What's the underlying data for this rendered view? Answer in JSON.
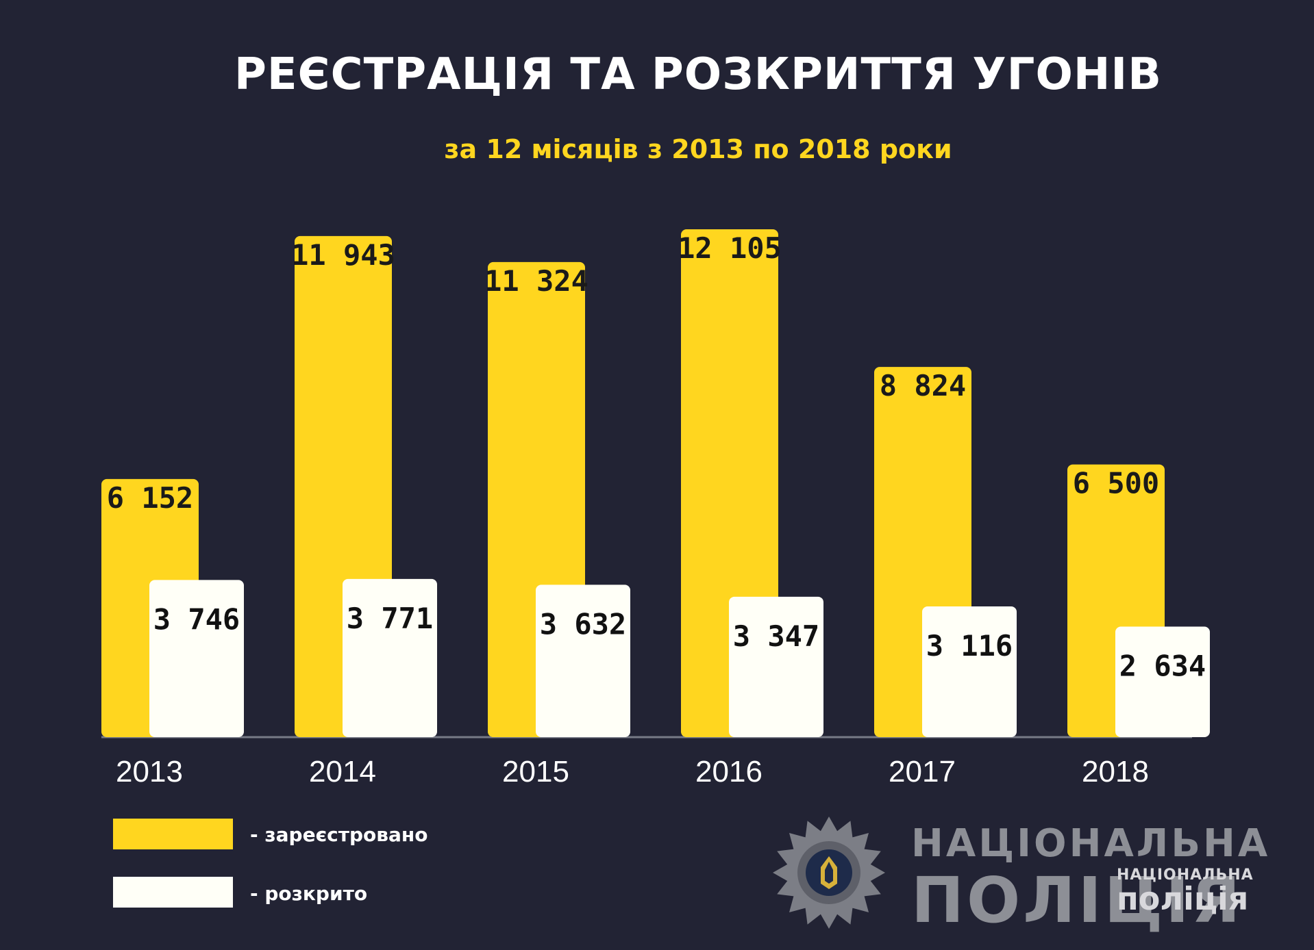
{
  "title": "РЕЄСТРАЦІЯ ТА РОЗКРИТТЯ УГОНІВ",
  "subtitle": "за 12 місяців з 2013 по 2018 роки",
  "chart_data": {
    "type": "bar",
    "title": "РЕЄСТРАЦІЯ ТА РОЗКРИТТЯ УГОНІВ",
    "subtitle": "за 12 місяців з 2013 по 2018 роки",
    "categories": [
      "2013",
      "2014",
      "2015",
      "2016",
      "2017",
      "2018"
    ],
    "series": [
      {
        "name": "зареєстровано",
        "color": "#ffd61f",
        "values": [
          6152,
          11943,
          11324,
          12105,
          8824,
          6500
        ],
        "labels": [
          "6 152",
          "11 943",
          "11 324",
          "12 105",
          "8 824",
          "6 500"
        ]
      },
      {
        "name": "розкрито",
        "color": "#fffff7",
        "values": [
          3746,
          3771,
          3632,
          3347,
          3116,
          2634
        ],
        "labels": [
          "3 746",
          "3 771",
          "3 632",
          "3 347",
          "3 116",
          "2 634"
        ]
      }
    ],
    "xlabel": "",
    "ylabel": "",
    "ylim": [
      0,
      12105
    ],
    "grid": false,
    "legend_position": "bottom-left"
  },
  "legend": [
    {
      "label": "- зареєстровано",
      "color": "#ffd61f"
    },
    {
      "label": "- розкрито",
      "color": "#fffff7"
    }
  ],
  "branding": {
    "line1": "НАЦІОНАЛЬНА",
    "line2": "ПОЛІЦІЯ",
    "watermark_top": "НАЦІОНАЛЬНА",
    "watermark_bottom": "поліція",
    "badge_icon": "police-star-badge-icon"
  }
}
